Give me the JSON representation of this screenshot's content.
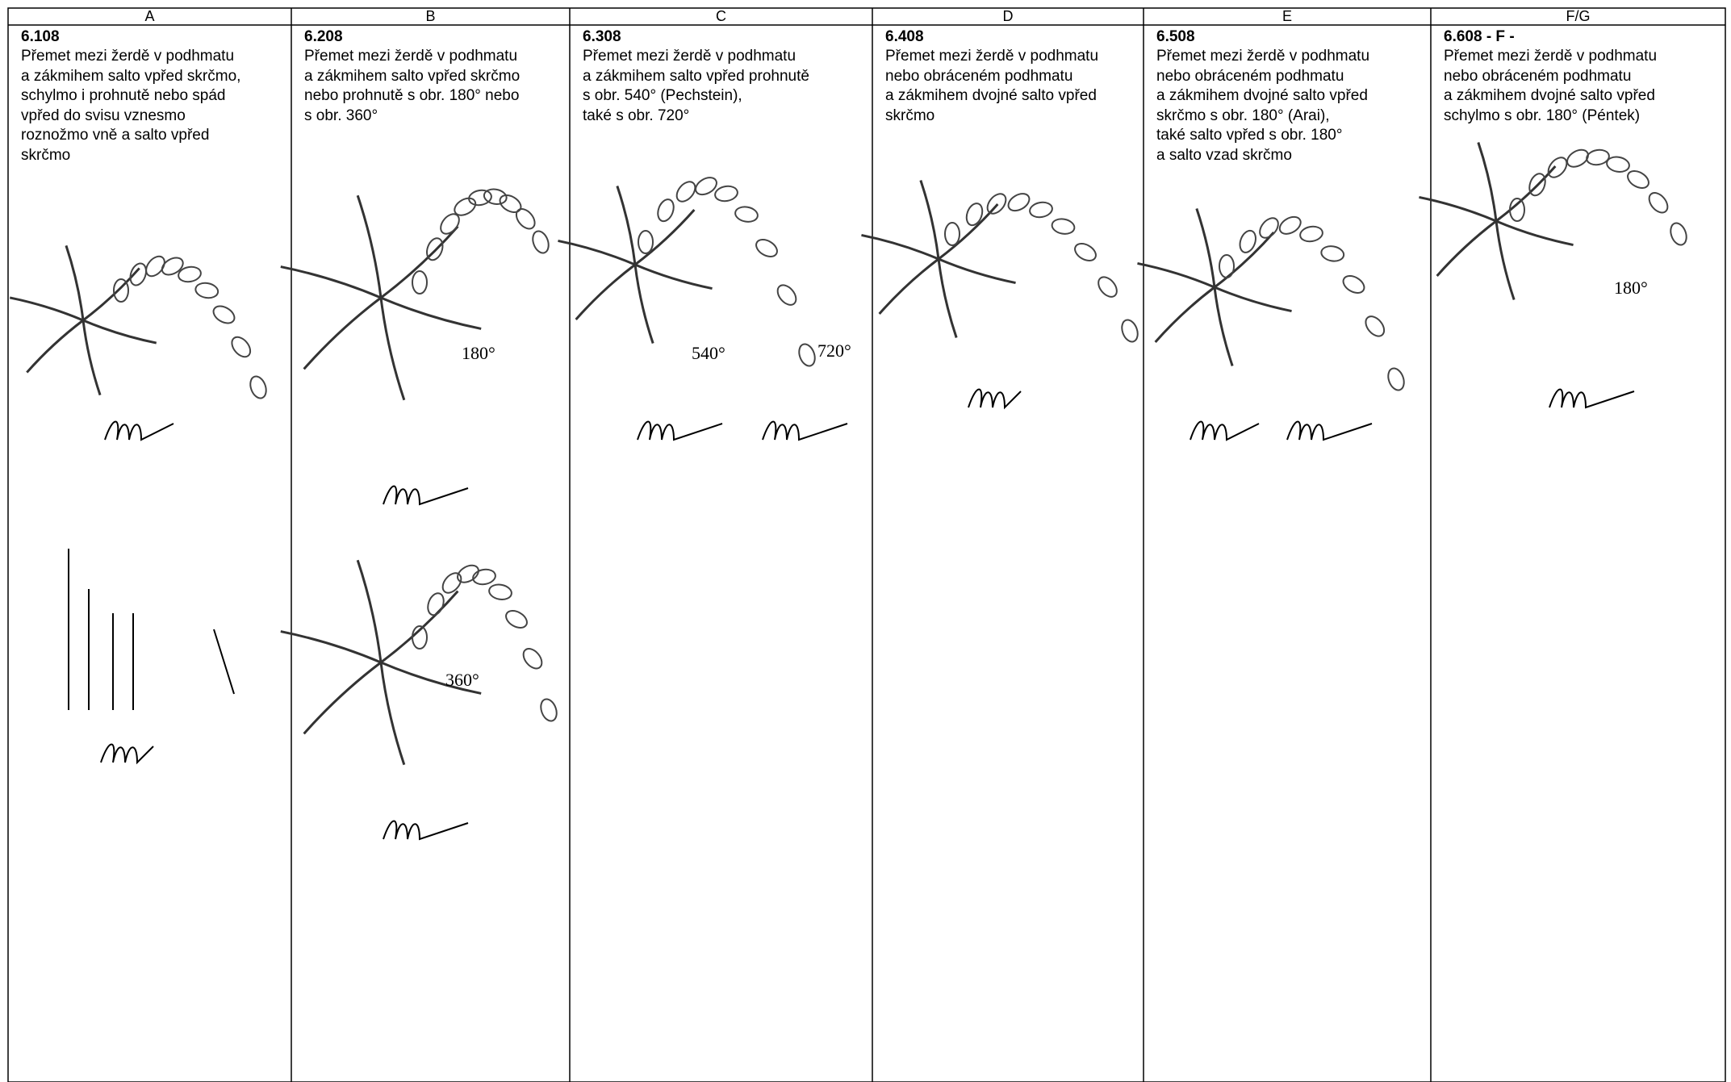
{
  "table": {
    "headers": [
      "A",
      "B",
      "C",
      "D",
      "E",
      "F/G"
    ],
    "cells": [
      {
        "code": "6.108",
        "lines": [
          "Přemet mezi žerdě v podhmatu",
          "a zákmihem salto vpřed skrčmo,",
          "schylmo i prohnutě nebo spád",
          "vpřed do svisu vznesmo",
          "roznožmo vně a salto vpřed",
          "skrčmo"
        ],
        "figure_labels": []
      },
      {
        "code": "6.208",
        "lines": [
          "Přemet mezi žerdě v podhmatu",
          "a zákmihem salto vpřed skrčmo",
          "nebo prohnutě s obr. 180° nebo",
          "s obr. 360°"
        ],
        "figure_labels": [
          "180°",
          "360°"
        ]
      },
      {
        "code": "6.308",
        "lines": [
          "Přemet mezi žerdě v podhmatu",
          "a zákmihem salto vpřed prohnutě",
          "s obr. 540° (Pechstein),",
          "také s obr. 720°"
        ],
        "figure_labels": [
          "540°",
          "720°"
        ]
      },
      {
        "code": "6.408",
        "lines": [
          "Přemet mezi žerdě v podhmatu",
          "nebo obráceném podhmatu",
          "a zákmihem dvojné salto vpřed",
          "skrčmo"
        ],
        "figure_labels": []
      },
      {
        "code": "6.508",
        "lines": [
          "Přemet mezi žerdě v podhmatu",
          "nebo obráceném podhmatu",
          "a zákmihem dvojné salto vpřed",
          "skrčmo s obr. 180° (Arai),",
          "také salto vpřed s obr. 180°",
          "a salto vzad skrčmo"
        ],
        "figure_labels": []
      },
      {
        "code": "6.608 - F -",
        "lines": [
          "Přemet mezi žerdě v podhmatu",
          "nebo obráceném podhmatu",
          "a zákmihem dvojné salto vpřed",
          "schylmo s obr. 180° (Péntek)"
        ],
        "figure_labels": [
          "180°"
        ]
      }
    ]
  }
}
